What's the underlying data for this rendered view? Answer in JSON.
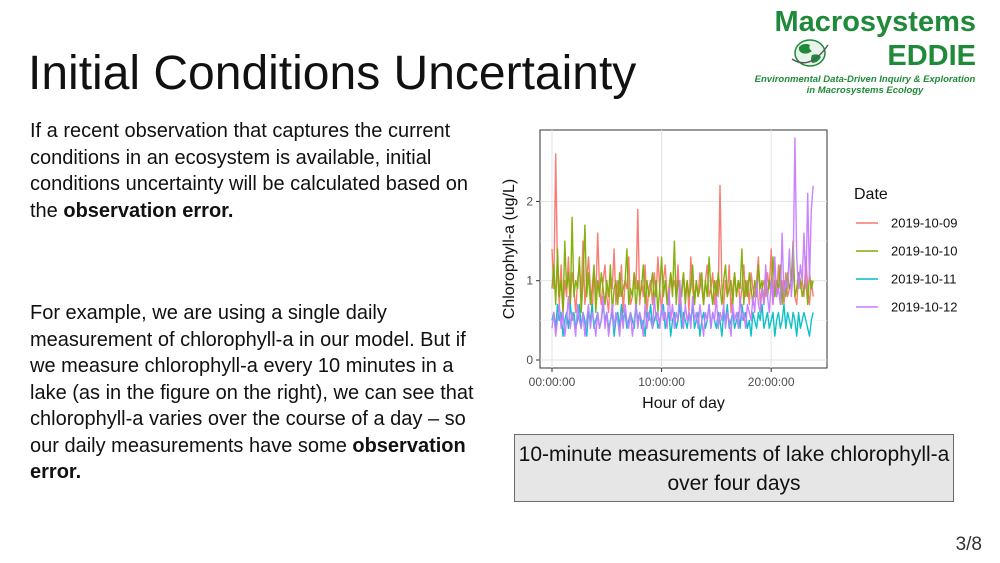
{
  "slide": {
    "title": "Initial Conditions Uncertainty",
    "para1_text": "If a recent observation that captures the current conditions in an ecosystem is available, initial conditions uncertainty will be calculated based on the ",
    "para1_bold": "observation error.",
    "para2_text": "For example, we are using a single daily measurement of chlorophyll-a in our model. But if we measure chlorophyll-a every 10 minutes in a lake (as in the figure on the right), we can see that chlorophyll-a varies over the course of a day – so our daily measurements have some ",
    "para2_bold": "observation error.",
    "caption": "10-minute measurements of lake chlorophyll-a over four days",
    "page_number": "3/8"
  },
  "logo": {
    "line1": "Macrosystems",
    "line2": "EDDIE",
    "tagline_line1": "Environmental Data-Driven Inquiry & Exploration",
    "tagline_line2": "in Macrosystems Ecology"
  },
  "chart_data": {
    "type": "line",
    "title": "",
    "xlabel": "Hour of day",
    "ylabel": "Chlorophyll-a (ug/L)",
    "xlim": [
      0,
      24
    ],
    "ylim": [
      0,
      2.8
    ],
    "x_ticks": [
      0,
      10,
      20
    ],
    "x_tick_labels": [
      "00:00:00",
      "10:00:00",
      "20:00:00"
    ],
    "y_ticks": [
      0,
      1,
      2
    ],
    "y_tick_labels": [
      "0",
      "1",
      "2"
    ],
    "grid": true,
    "legend_title": "Date",
    "legend_position": "right",
    "x_interval_minutes": 10,
    "series": [
      {
        "name": "2019-10-09",
        "color": "#F8766D",
        "values": [
          1.4,
          0.9,
          2.6,
          1.1,
          0.7,
          1.2,
          0.6,
          1.0,
          0.8,
          1.3,
          0.7,
          1.1,
          0.9,
          0.6,
          1.0,
          1.2,
          0.8,
          1.5,
          0.7,
          1.0,
          1.3,
          0.9,
          0.6,
          1.1,
          0.8,
          1.6,
          0.9,
          0.7,
          1.0,
          1.2,
          0.8,
          0.6,
          1.1,
          0.9,
          1.4,
          0.7,
          1.0,
          0.8,
          1.2,
          0.6,
          1.0,
          0.9,
          1.3,
          0.7,
          0.8,
          1.1,
          0.9,
          1.9,
          0.7,
          1.0,
          0.8,
          1.2,
          0.6,
          0.9,
          1.0,
          0.7,
          1.1,
          0.8,
          1.3,
          0.9,
          0.6,
          1.0,
          1.2,
          0.8,
          0.7,
          1.1,
          0.9,
          1.0,
          0.8,
          1.2,
          0.7,
          0.9,
          1.1,
          0.8,
          1.0,
          0.6,
          1.3,
          0.9,
          0.7,
          1.0,
          0.8,
          1.1,
          0.9,
          0.7,
          1.0,
          1.2,
          0.8,
          0.9,
          1.1,
          0.7,
          1.0,
          0.8,
          2.2,
          0.9,
          0.7,
          1.0,
          0.8,
          1.2,
          0.6,
          0.9,
          1.1,
          0.8,
          1.0,
          0.7,
          0.9,
          1.2,
          0.8,
          1.0,
          0.7,
          1.1,
          0.9,
          0.8,
          1.0,
          1.3,
          0.7,
          0.9,
          1.0,
          0.8,
          1.1,
          0.9,
          1.4,
          0.7,
          1.0,
          0.8,
          1.2,
          0.9,
          1.0,
          0.7,
          1.1,
          0.8,
          0.9,
          1.0,
          1.2,
          0.8,
          0.7,
          1.1,
          0.9,
          1.0,
          0.8,
          1.3,
          0.9,
          0.7,
          1.0,
          0.8
        ]
      },
      {
        "name": "2019-10-10",
        "color": "#7CAE00",
        "values": [
          0.9,
          1.2,
          0.7,
          1.4,
          0.8,
          1.0,
          0.6,
          1.5,
          0.9,
          1.1,
          0.7,
          1.8,
          0.8,
          1.0,
          0.9,
          1.3,
          0.6,
          1.0,
          1.7,
          0.8,
          1.1,
          0.7,
          0.9,
          1.2,
          0.6,
          1.0,
          0.8,
          1.1,
          0.9,
          0.7,
          1.0,
          0.8,
          1.2,
          0.6,
          0.9,
          1.0,
          0.7,
          1.1,
          0.8,
          0.9,
          1.0,
          1.4,
          0.7,
          0.9,
          0.8,
          1.1,
          0.6,
          1.0,
          0.8,
          0.9,
          1.2,
          0.7,
          1.0,
          0.8,
          0.9,
          1.1,
          0.7,
          1.0,
          0.6,
          0.9,
          1.3,
          0.8,
          1.0,
          0.7,
          0.9,
          1.1,
          0.8,
          1.5,
          0.7,
          1.0,
          0.9,
          0.8,
          1.1,
          0.7,
          1.0,
          0.8,
          0.9,
          1.2,
          0.7,
          1.0,
          0.8,
          0.9,
          1.1,
          0.7,
          1.0,
          0.8,
          1.3,
          0.9,
          0.7,
          1.0,
          0.8,
          1.1,
          0.9,
          0.7,
          1.0,
          1.2,
          0.8,
          0.9,
          1.0,
          0.7,
          1.1,
          0.8,
          1.0,
          0.9,
          1.4,
          0.7,
          1.0,
          0.8,
          1.1,
          0.9,
          0.7,
          1.0,
          0.8,
          1.2,
          0.9,
          1.0,
          0.7,
          1.1,
          0.8,
          1.0,
          0.9,
          1.3,
          0.8,
          1.0,
          0.9,
          1.2,
          0.7,
          1.0,
          0.8,
          1.1,
          0.9,
          1.0,
          1.5,
          0.8,
          0.9,
          1.1,
          1.0,
          0.8,
          0.9,
          1.0,
          0.7,
          1.1,
          0.9,
          1.0
        ]
      },
      {
        "name": "2019-10-11",
        "color": "#00BFC4",
        "values": [
          0.5,
          0.6,
          0.4,
          0.7,
          0.5,
          0.6,
          0.3,
          0.5,
          0.6,
          0.4,
          0.7,
          0.5,
          0.6,
          0.4,
          0.5,
          0.7,
          0.4,
          0.6,
          0.5,
          0.3,
          0.6,
          0.5,
          0.7,
          0.4,
          0.5,
          0.6,
          0.4,
          0.5,
          0.7,
          0.5,
          0.6,
          0.4,
          0.5,
          0.6,
          0.3,
          0.5,
          0.6,
          0.4,
          0.7,
          0.5,
          0.6,
          0.4,
          0.5,
          0.6,
          0.5,
          0.4,
          0.7,
          0.5,
          0.6,
          0.4,
          0.5,
          0.3,
          0.6,
          0.5,
          0.7,
          0.4,
          0.5,
          0.6,
          0.4,
          0.5,
          0.6,
          0.7,
          0.4,
          0.5,
          0.6,
          0.3,
          0.5,
          0.6,
          0.4,
          0.5,
          0.7,
          0.4,
          0.6,
          0.5,
          0.4,
          0.6,
          0.5,
          0.7,
          0.4,
          0.5,
          0.6,
          0.3,
          0.5,
          0.6,
          0.4,
          0.5,
          0.7,
          0.4,
          0.6,
          0.5,
          0.4,
          0.6,
          0.5,
          0.3,
          0.6,
          0.5,
          0.7,
          0.4,
          0.5,
          0.6,
          0.4,
          0.5,
          0.6,
          0.4,
          0.7,
          0.5,
          0.6,
          0.4,
          0.5,
          0.3,
          0.6,
          0.5,
          0.4,
          0.6,
          0.5,
          0.7,
          0.4,
          0.5,
          0.6,
          0.4,
          0.5,
          0.6,
          0.3,
          0.5,
          0.6,
          0.4,
          0.5,
          0.7,
          0.4,
          0.6,
          0.5,
          0.4,
          0.6,
          0.5,
          0.3,
          0.6,
          0.4,
          0.5,
          0.6,
          0.5,
          0.4,
          0.3,
          0.5,
          0.6
        ]
      },
      {
        "name": "2019-10-12",
        "color": "#C77CFF",
        "values": [
          0.4,
          0.6,
          0.3,
          0.5,
          0.7,
          0.4,
          0.6,
          0.3,
          0.5,
          0.8,
          0.4,
          0.6,
          0.5,
          0.3,
          0.7,
          0.5,
          0.4,
          0.6,
          0.3,
          0.5,
          0.7,
          0.4,
          0.6,
          0.5,
          0.3,
          0.6,
          0.4,
          0.5,
          0.8,
          0.4,
          0.6,
          0.3,
          0.5,
          0.7,
          0.4,
          0.6,
          0.5,
          0.3,
          0.6,
          0.4,
          0.7,
          0.5,
          0.4,
          0.6,
          0.3,
          0.5,
          0.7,
          0.4,
          0.6,
          0.5,
          0.3,
          0.7,
          0.4,
          0.6,
          0.5,
          0.4,
          0.8,
          0.5,
          0.6,
          0.4,
          0.7,
          0.5,
          0.6,
          0.4,
          0.9,
          0.5,
          0.7,
          0.4,
          0.6,
          0.5,
          1.0,
          0.6,
          0.4,
          0.7,
          0.5,
          0.6,
          0.4,
          0.8,
          0.5,
          0.6,
          0.4,
          0.7,
          0.5,
          0.3,
          0.6,
          0.5,
          0.7,
          0.4,
          0.6,
          0.5,
          0.8,
          0.4,
          0.6,
          0.5,
          0.7,
          0.4,
          0.6,
          0.5,
          0.3,
          0.7,
          0.5,
          0.6,
          0.4,
          0.8,
          0.5,
          0.6,
          0.4,
          0.7,
          0.6,
          0.5,
          0.8,
          0.6,
          1.0,
          0.7,
          0.6,
          0.9,
          0.7,
          1.2,
          0.8,
          0.6,
          1.0,
          0.7,
          1.3,
          0.8,
          0.9,
          0.7,
          1.6,
          0.8,
          1.0,
          0.9,
          1.4,
          0.8,
          1.1,
          2.8,
          1.3,
          0.9,
          1.2,
          1.0,
          1.6,
          0.9,
          2.1,
          1.0,
          1.9,
          2.2
        ]
      }
    ]
  }
}
